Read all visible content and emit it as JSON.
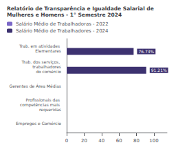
{
  "chart_data": {
    "type": "bar",
    "orientation": "horizontal",
    "title": "Relatório de Transparência e Igualdade Salarial de Mulheres e Homens - 1° Semestre 2024",
    "categories": [
      "Empregos e Comércio",
      "Profissionais das competências mais requeridas",
      "Gerentes de Área Médias",
      "Trab. dos serviços, trabalhadores\ndo comércio",
      "Trab. em atividades Elementares"
    ],
    "series": [
      {
        "name": "Salário Médio de Trabalhadoras - 2022",
        "color": "#7b68c8",
        "values": [
          0,
          0,
          0,
          0,
          0
        ]
      },
      {
        "name": "Salário Médio de Trabalhadores - 2024",
        "color": "#3d3270",
        "values": [
          0,
          0,
          0,
          91.21,
          76.73
        ],
        "value_labels": [
          null,
          null,
          null,
          "91.21%",
          "76.73%"
        ]
      }
    ],
    "xlim": [
      0,
      115
    ],
    "xticks": [
      0,
      20,
      40,
      60,
      80,
      100
    ],
    "grid": false,
    "legend": "top"
  }
}
